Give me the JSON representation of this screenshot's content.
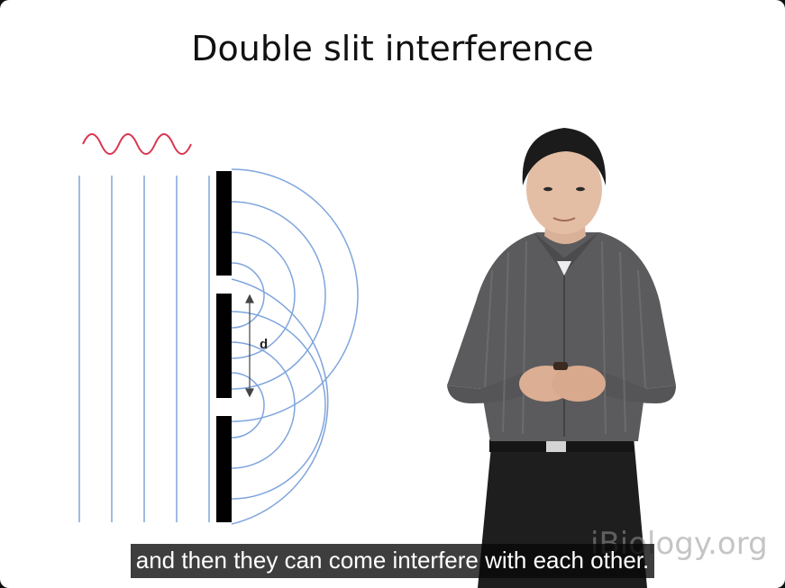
{
  "slide": {
    "title": "Double slit interference",
    "distance_label": "d"
  },
  "watermark": "iBiology.org",
  "caption": "and then they can come interfere with each other.",
  "icons": {
    "incoming_wave": "wave-icon",
    "slit_barrier": "barrier-icon"
  },
  "colors": {
    "wave_lines": "#7fa5dc",
    "incident_wave": "#d9354f",
    "barrier": "#000000",
    "caption_bg": "#080808"
  }
}
